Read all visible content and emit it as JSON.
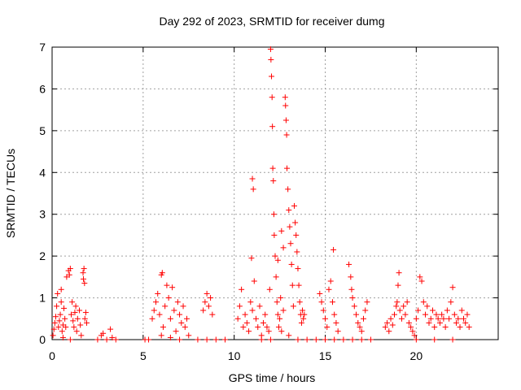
{
  "chart_data": {
    "type": "scatter",
    "title": "Day 292 of 2023, SRMTID for receiver dumg",
    "xlabel": "GPS time / hours",
    "ylabel": "SRMTID / TECUs",
    "xlim": [
      0,
      24.5
    ],
    "ylim": [
      0,
      7
    ],
    "xticks": [
      0,
      5,
      10,
      15,
      20
    ],
    "yticks": [
      0,
      1,
      2,
      3,
      4,
      5,
      6,
      7
    ],
    "grid": true,
    "marker": "+",
    "marker_color": "#ff0000",
    "series": [
      {
        "name": "SRMTID",
        "points": [
          [
            0.05,
            0.1
          ],
          [
            0.1,
            0.25
          ],
          [
            0.15,
            0.4
          ],
          [
            0.2,
            0.55
          ],
          [
            0.25,
            0.8
          ],
          [
            0.3,
            1.1
          ],
          [
            0.35,
            0.3
          ],
          [
            0.4,
            0.45
          ],
          [
            0.45,
            0.6
          ],
          [
            0.5,
            0.9
          ],
          [
            0.55,
            0.2
          ],
          [
            0.6,
            0.35
          ],
          [
            0.65,
            0.75
          ],
          [
            0.7,
            0.5
          ],
          [
            0.75,
            0.3
          ],
          [
            0.8,
            1.5
          ],
          [
            0.9,
            1.65
          ],
          [
            0.95,
            1.55
          ],
          [
            1.0,
            1.7
          ],
          [
            1.05,
            0.6
          ],
          [
            1.1,
            0.9
          ],
          [
            1.15,
            0.45
          ],
          [
            1.2,
            0.3
          ],
          [
            1.25,
            0.65
          ],
          [
            1.3,
            0.8
          ],
          [
            1.35,
            0.2
          ],
          [
            1.4,
            0.5
          ],
          [
            1.5,
            0.7
          ],
          [
            1.55,
            0.35
          ],
          [
            1.6,
            0.1
          ],
          [
            1.7,
            1.6
          ],
          [
            1.72,
            1.45
          ],
          [
            1.75,
            1.7
          ],
          [
            1.78,
            1.35
          ],
          [
            1.8,
            0.5
          ],
          [
            1.85,
            0.65
          ],
          [
            1.9,
            0.4
          ],
          [
            0.5,
            1.2
          ],
          [
            0.6,
            0.05
          ],
          [
            1.0,
            0.0
          ],
          [
            2.5,
            0.0
          ],
          [
            2.7,
            0.1
          ],
          [
            2.8,
            0.15
          ],
          [
            3.0,
            0.0
          ],
          [
            3.2,
            0.25
          ],
          [
            3.3,
            0.05
          ],
          [
            3.5,
            0.0
          ],
          [
            5.1,
            0.0
          ],
          [
            5.3,
            0.0
          ],
          [
            5.5,
            0.5
          ],
          [
            5.6,
            0.7
          ],
          [
            5.7,
            0.9
          ],
          [
            5.8,
            1.1
          ],
          [
            5.9,
            0.6
          ],
          [
            6.0,
            1.55
          ],
          [
            6.05,
            1.6
          ],
          [
            6.1,
            0.3
          ],
          [
            6.2,
            0.8
          ],
          [
            6.3,
            1.3
          ],
          [
            6.4,
            1.0
          ],
          [
            6.5,
            0.5
          ],
          [
            6.6,
            1.25
          ],
          [
            6.7,
            0.7
          ],
          [
            6.8,
            0.2
          ],
          [
            6.9,
            0.9
          ],
          [
            7.0,
            0.6
          ],
          [
            7.1,
            0.4
          ],
          [
            7.2,
            0.8
          ],
          [
            7.3,
            0.3
          ],
          [
            7.4,
            0.5
          ],
          [
            7.5,
            0.1
          ],
          [
            6.0,
            0.1
          ],
          [
            6.5,
            0.05
          ],
          [
            7.0,
            0.0
          ],
          [
            8.0,
            0.0
          ],
          [
            8.3,
            0.7
          ],
          [
            8.4,
            0.9
          ],
          [
            8.5,
            1.1
          ],
          [
            8.6,
            0.8
          ],
          [
            8.7,
            1.0
          ],
          [
            8.8,
            0.6
          ],
          [
            8.5,
            0.0
          ],
          [
            9.0,
            0.0
          ],
          [
            9.5,
            0.0
          ],
          [
            10.2,
            0.5
          ],
          [
            10.3,
            0.8
          ],
          [
            10.4,
            1.2
          ],
          [
            10.5,
            0.3
          ],
          [
            10.6,
            0.6
          ],
          [
            10.7,
            0.4
          ],
          [
            10.8,
            0.2
          ],
          [
            10.9,
            0.9
          ],
          [
            10.95,
            1.95
          ],
          [
            11.0,
            3.85
          ],
          [
            11.05,
            3.6
          ],
          [
            11.0,
            0.7
          ],
          [
            11.1,
            1.4
          ],
          [
            11.2,
            0.5
          ],
          [
            11.3,
            0.3
          ],
          [
            11.4,
            0.8
          ],
          [
            11.5,
            0.1
          ],
          [
            11.6,
            0.4
          ],
          [
            11.7,
            0.6
          ],
          [
            11.8,
            0.3
          ],
          [
            11.9,
            0.2
          ],
          [
            11.95,
            1.2
          ],
          [
            12.0,
            6.95
          ],
          [
            12.02,
            6.7
          ],
          [
            12.05,
            6.3
          ],
          [
            12.08,
            5.8
          ],
          [
            12.1,
            5.1
          ],
          [
            12.12,
            4.1
          ],
          [
            12.15,
            3.8
          ],
          [
            12.18,
            3.0
          ],
          [
            12.2,
            2.5
          ],
          [
            12.25,
            2.0
          ],
          [
            12.3,
            1.5
          ],
          [
            12.35,
            0.9
          ],
          [
            12.4,
            0.6
          ],
          [
            12.45,
            0.3
          ],
          [
            12.5,
            0.5
          ],
          [
            12.55,
            1.0
          ],
          [
            12.6,
            0.2
          ],
          [
            12.7,
            0.7
          ],
          [
            12.8,
            5.8
          ],
          [
            12.82,
            5.6
          ],
          [
            12.85,
            5.25
          ],
          [
            12.88,
            4.9
          ],
          [
            12.9,
            4.1
          ],
          [
            12.95,
            3.6
          ],
          [
            13.0,
            3.1
          ],
          [
            13.05,
            2.7
          ],
          [
            13.1,
            2.3
          ],
          [
            13.15,
            1.8
          ],
          [
            13.2,
            1.3
          ],
          [
            13.25,
            0.8
          ],
          [
            13.3,
            3.2
          ],
          [
            13.35,
            2.8
          ],
          [
            13.4,
            2.5
          ],
          [
            13.45,
            2.1
          ],
          [
            13.5,
            1.7
          ],
          [
            13.55,
            1.3
          ],
          [
            13.6,
            0.9
          ],
          [
            13.65,
            0.6
          ],
          [
            13.7,
            0.4
          ],
          [
            13.75,
            0.7
          ],
          [
            13.8,
            0.5
          ],
          [
            13.85,
            0.6
          ],
          [
            12.6,
            2.6
          ],
          [
            12.7,
            2.2
          ],
          [
            12.4,
            1.9
          ],
          [
            13.0,
            0.1
          ],
          [
            11.5,
            0.0
          ],
          [
            12.0,
            0.0
          ],
          [
            13.5,
            0.0
          ],
          [
            14.0,
            0.0
          ],
          [
            14.5,
            0.0
          ],
          [
            14.7,
            1.1
          ],
          [
            14.8,
            0.9
          ],
          [
            14.9,
            0.7
          ],
          [
            15.0,
            0.5
          ],
          [
            15.1,
            0.3
          ],
          [
            15.2,
            1.2
          ],
          [
            15.3,
            1.4
          ],
          [
            15.4,
            0.9
          ],
          [
            15.45,
            2.15
          ],
          [
            15.5,
            0.6
          ],
          [
            15.6,
            0.4
          ],
          [
            15.7,
            0.2
          ],
          [
            15.0,
            0.0
          ],
          [
            15.5,
            0.0
          ],
          [
            16.0,
            0.0
          ],
          [
            16.3,
            1.8
          ],
          [
            16.4,
            1.5
          ],
          [
            16.45,
            1.2
          ],
          [
            16.5,
            1.0
          ],
          [
            16.6,
            0.8
          ],
          [
            16.7,
            0.6
          ],
          [
            16.8,
            0.4
          ],
          [
            16.9,
            0.3
          ],
          [
            17.0,
            0.2
          ],
          [
            17.1,
            0.5
          ],
          [
            17.2,
            0.7
          ],
          [
            17.3,
            0.9
          ],
          [
            16.5,
            0.0
          ],
          [
            17.0,
            0.0
          ],
          [
            17.5,
            0.0
          ],
          [
            18.3,
            0.3
          ],
          [
            18.4,
            0.4
          ],
          [
            18.5,
            0.2
          ],
          [
            18.6,
            0.5
          ],
          [
            18.7,
            0.35
          ],
          [
            18.8,
            0.6
          ],
          [
            18.9,
            0.8
          ],
          [
            18.95,
            0.9
          ],
          [
            19.0,
            1.3
          ],
          [
            19.05,
            1.6
          ],
          [
            19.1,
            0.7
          ],
          [
            19.2,
            0.5
          ],
          [
            19.3,
            0.8
          ],
          [
            19.4,
            0.6
          ],
          [
            19.5,
            0.9
          ],
          [
            19.6,
            0.4
          ],
          [
            19.7,
            0.3
          ],
          [
            19.8,
            0.2
          ],
          [
            19.9,
            0.1
          ],
          [
            20.0,
            0.5
          ],
          [
            20.1,
            0.7
          ],
          [
            20.2,
            1.5
          ],
          [
            20.3,
            1.4
          ],
          [
            20.4,
            0.9
          ],
          [
            20.5,
            0.6
          ],
          [
            20.6,
            0.8
          ],
          [
            20.7,
            0.4
          ],
          [
            20.8,
            0.5
          ],
          [
            20.9,
            0.7
          ],
          [
            21.0,
            0.3
          ],
          [
            21.1,
            0.6
          ],
          [
            21.2,
            0.5
          ],
          [
            21.3,
            0.4
          ],
          [
            21.4,
            0.6
          ],
          [
            21.5,
            0.5
          ],
          [
            21.6,
            0.3
          ],
          [
            21.7,
            0.7
          ],
          [
            21.8,
            0.5
          ],
          [
            21.9,
            0.9
          ],
          [
            22.0,
            1.25
          ],
          [
            22.1,
            0.6
          ],
          [
            22.2,
            0.4
          ],
          [
            22.3,
            0.5
          ],
          [
            22.4,
            0.3
          ],
          [
            22.5,
            0.7
          ],
          [
            22.6,
            0.5
          ],
          [
            22.7,
            0.4
          ],
          [
            22.8,
            0.6
          ],
          [
            22.9,
            0.3
          ],
          [
            20.0,
            0.0
          ],
          [
            21.0,
            0.0
          ],
          [
            22.0,
            0.0
          ]
        ]
      }
    ]
  }
}
